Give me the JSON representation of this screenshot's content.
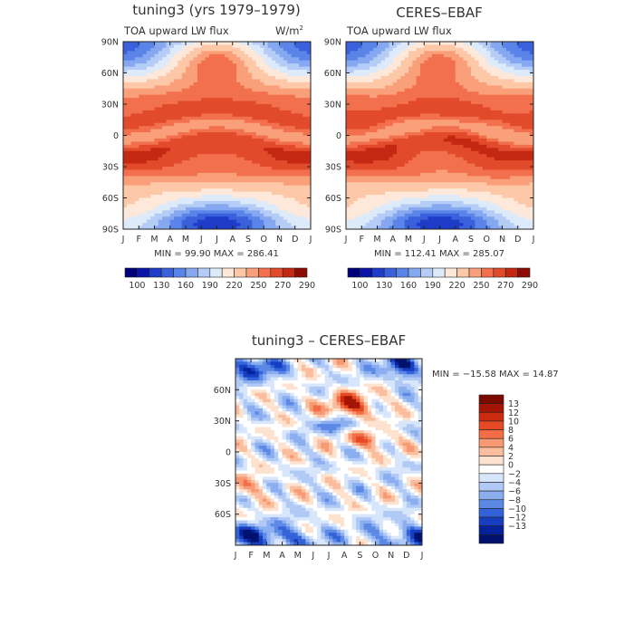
{
  "figure": {
    "background": "#ffffff"
  },
  "chart_data": [
    {
      "type": "heatmap",
      "title": "tuning3 (yrs 1979–1979)",
      "subtitle_left": "TOA upward LW flux",
      "units": "W/m",
      "units_sup": "2",
      "x": [
        "J",
        "F",
        "M",
        "A",
        "M",
        "J",
        "J",
        "A",
        "S",
        "O",
        "N",
        "D",
        "J"
      ],
      "yticks": [
        "90N",
        "60N",
        "30N",
        "0",
        "30S",
        "60S",
        "90S"
      ],
      "stats": "MIN =   99.90 MAX = 286.41",
      "min": 99.9,
      "max": 286.41,
      "colorbar_labels": [
        "100",
        "130",
        "160",
        "190",
        "220",
        "250",
        "270",
        "290"
      ],
      "colorbar_values": [
        100,
        115,
        130,
        145,
        160,
        175,
        190,
        205,
        220,
        235,
        250,
        260,
        270,
        280,
        290
      ]
    },
    {
      "type": "heatmap",
      "title": "CERES–EBAF",
      "subtitle_left": "TOA upward LW flux",
      "x": [
        "J",
        "F",
        "M",
        "A",
        "M",
        "J",
        "J",
        "A",
        "S",
        "O",
        "N",
        "D",
        "J"
      ],
      "yticks": [
        "90N",
        "60N",
        "30N",
        "0",
        "30S",
        "60S",
        "90S"
      ],
      "stats": "MIN = 112.41 MAX = 285.07",
      "min": 112.41,
      "max": 285.07,
      "colorbar_labels": [
        "100",
        "130",
        "160",
        "190",
        "220",
        "250",
        "270",
        "290"
      ],
      "colorbar_values": [
        100,
        115,
        130,
        145,
        160,
        175,
        190,
        205,
        220,
        235,
        250,
        260,
        270,
        280,
        290
      ]
    },
    {
      "type": "heatmap",
      "title": "tuning3 – CERES–EBAF",
      "x": [
        "J",
        "F",
        "M",
        "A",
        "M",
        "J",
        "J",
        "A",
        "S",
        "O",
        "N",
        "D",
        "J"
      ],
      "yticks": [
        "60N",
        "30N",
        "0",
        "30S",
        "60S"
      ],
      "stats": "MIN = −15.58 MAX =  14.87",
      "min": -15.58,
      "max": 14.87,
      "colorbar_labels": [
        "13",
        "12",
        "10",
        "8",
        "6",
        "4",
        "2",
        "0",
        "−2",
        "−4",
        "−6",
        "−8",
        "−10",
        "−12",
        "−13"
      ],
      "colorbar_values": [
        13,
        12,
        10,
        8,
        6,
        4,
        2,
        0,
        -2,
        -4,
        -6,
        -8,
        -10,
        -12,
        -13
      ]
    }
  ],
  "colors": {
    "flux_scale": [
      "#00007a",
      "#0a14a6",
      "#1e3cc8",
      "#3a60dc",
      "#5a84e8",
      "#86a8f0",
      "#b4ccf6",
      "#dceafa",
      "#fde8da",
      "#fcc8a8",
      "#f9a07a",
      "#f2704e",
      "#e24a2c",
      "#c52812",
      "#8c0c04"
    ],
    "diff_scale_top_to_bottom": [
      "#7a0a00",
      "#a51505",
      "#cc2a0e",
      "#e64a24",
      "#f36e46",
      "#f79a73",
      "#fabe9f",
      "#fde2cf",
      "#ffffff",
      "#d8e6fb",
      "#b0caf5",
      "#8aaeef",
      "#5c88e6",
      "#3462d8",
      "#173ec0",
      "#05229a",
      "#00126e"
    ]
  }
}
